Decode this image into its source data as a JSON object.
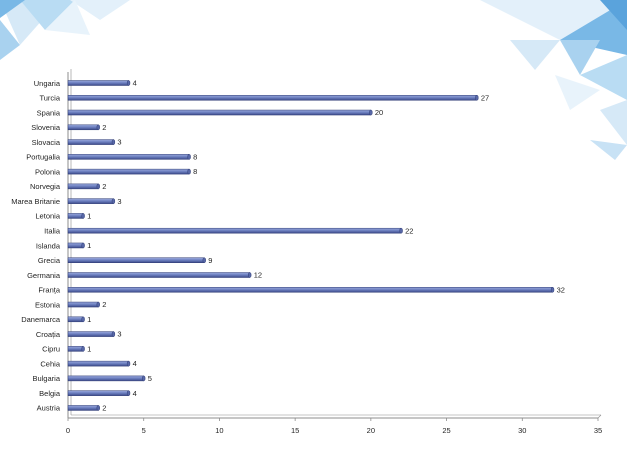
{
  "colors": {
    "bar_fill": "#6f82c2",
    "bar_stroke": "#2d3a73",
    "axis": "#8c8c8c",
    "decor_light": "#d6e9f7",
    "decor_mid": "#a9d2ef",
    "decor_dark": "#79b8e6"
  },
  "chart_data": {
    "type": "bar",
    "orientation": "horizontal",
    "categories": [
      "Ungaria",
      "Turcia",
      "Spania",
      "Slovenia",
      "Slovacia",
      "Portugalia",
      "Polonia",
      "Norvegia",
      "Marea Britanie",
      "Letonia",
      "Italia",
      "Islanda",
      "Grecia",
      "Germania",
      "Franța",
      "Estonia",
      "Danemarca",
      "Croația",
      "Cipru",
      "Cehia",
      "Bulgaria",
      "Belgia",
      "Austria"
    ],
    "values": [
      4,
      27,
      20,
      2,
      3,
      8,
      8,
      2,
      3,
      1,
      22,
      1,
      9,
      12,
      32,
      2,
      1,
      3,
      1,
      4,
      5,
      4,
      2
    ],
    "data_labels": [
      "4",
      "27",
      "20",
      "2",
      "3",
      "8",
      "8",
      "2",
      "3",
      "1",
      "22",
      "1",
      "9",
      "12",
      "32",
      "2",
      "1",
      "3",
      "1",
      "4",
      "5",
      "4",
      "2"
    ],
    "xlim": [
      0,
      35
    ],
    "x_ticks": [
      0,
      5,
      10,
      15,
      20,
      25,
      30,
      35
    ],
    "x_tick_labels": [
      "0",
      "5",
      "10",
      "15",
      "20",
      "25",
      "30",
      "35"
    ],
    "grid": false,
    "legend": "none",
    "style": "3d-cylinder-bars"
  }
}
